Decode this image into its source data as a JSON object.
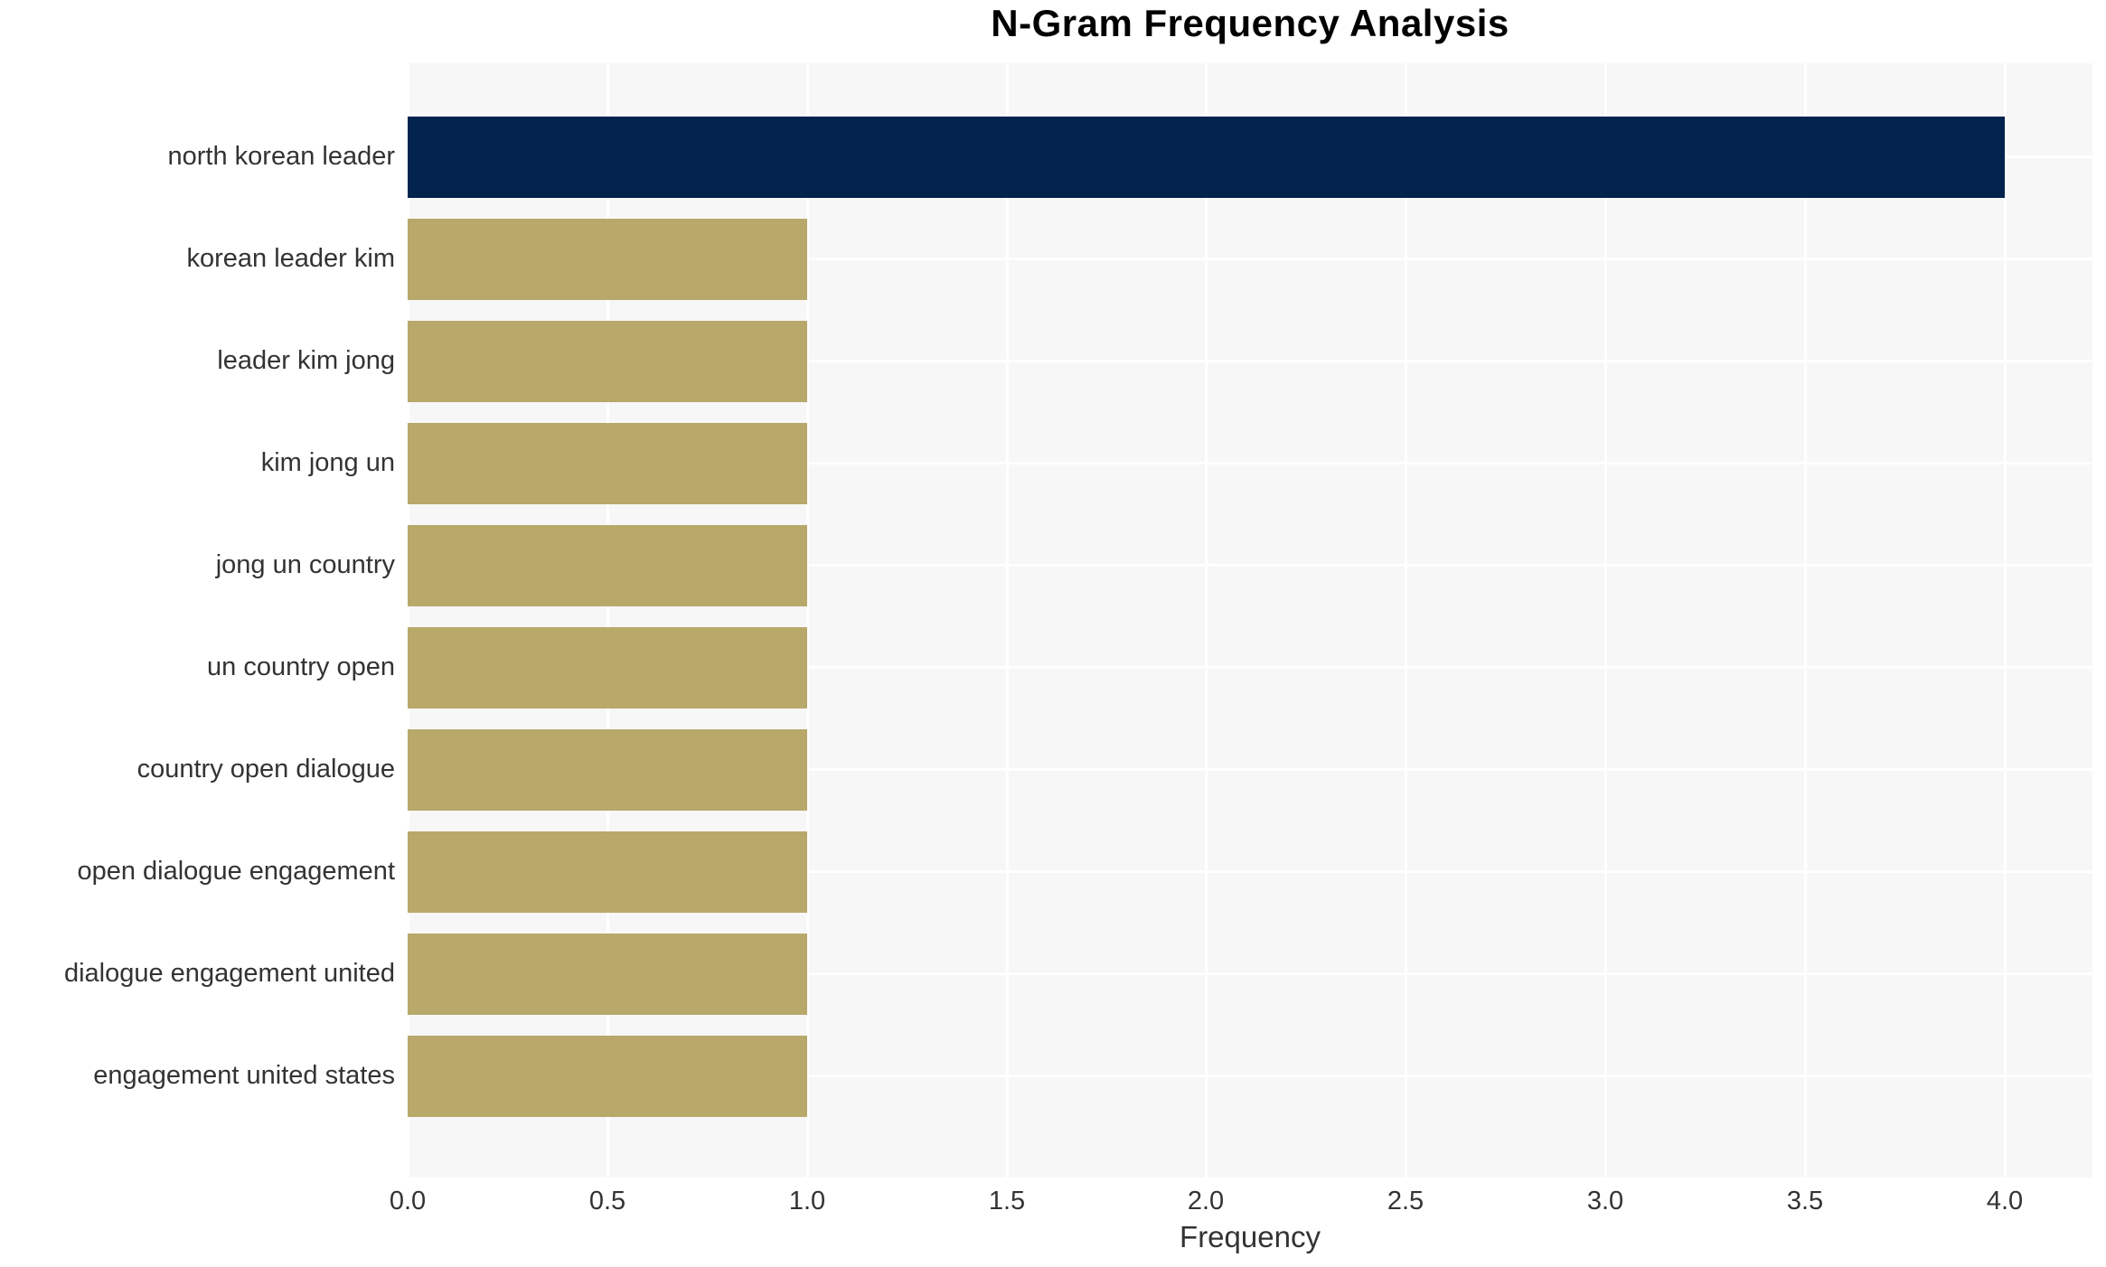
{
  "chart_data": {
    "type": "bar",
    "orientation": "horizontal",
    "title": "N-Gram Frequency Analysis",
    "xlabel": "Frequency",
    "ylabel": "",
    "categories": [
      "north korean leader",
      "korean leader kim",
      "leader kim jong",
      "kim jong un",
      "jong un country",
      "un country open",
      "country open dialogue",
      "open dialogue engagement",
      "dialogue engagement united",
      "engagement united states"
    ],
    "values": [
      4.0,
      1.0,
      1.0,
      1.0,
      1.0,
      1.0,
      1.0,
      1.0,
      1.0,
      1.0
    ],
    "bar_colors": [
      "#02234d",
      "#b8a86a",
      "#b8a86a",
      "#b8a86a",
      "#b8a86a",
      "#b8a86a",
      "#b8a86a",
      "#b8a86a",
      "#b8a86a",
      "#b8a86a"
    ],
    "xlim": [
      0,
      4.22
    ],
    "xticks": [
      0.0,
      0.5,
      1.0,
      1.5,
      2.0,
      2.5,
      3.0,
      3.5,
      4.0
    ],
    "xtick_labels": [
      "0.0",
      "0.5",
      "1.0",
      "1.5",
      "2.0",
      "2.5",
      "3.0",
      "3.5",
      "4.0"
    ],
    "grid": true,
    "legend": false,
    "plot_background": "#f7f7f8",
    "gridline_color": "#ffffff",
    "figure_background": "#ffffff",
    "highlight_color": "#02234d",
    "default_bar_color": "#b8a86a"
  }
}
